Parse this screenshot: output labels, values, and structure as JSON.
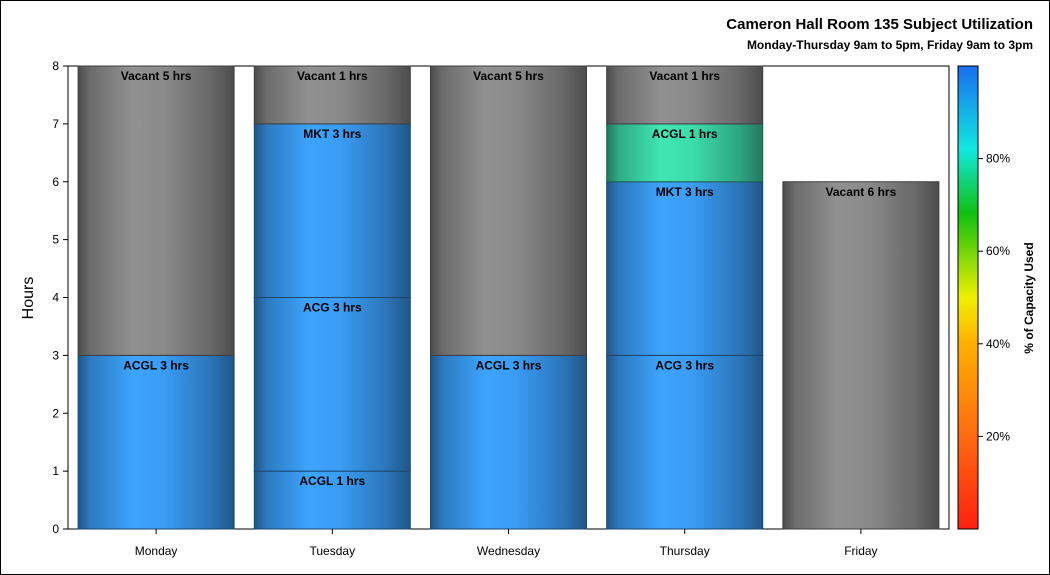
{
  "chart_data": {
    "type": "bar",
    "stacked": true,
    "title": "Cameron Hall Room 135 Subject Utilization",
    "subtitle": "Monday-Thursday 9am to 5pm, Friday 9am to 3pm",
    "ylabel": "Hours",
    "ylim": [
      0,
      8
    ],
    "yticks": [
      0,
      1,
      2,
      3,
      4,
      5,
      6,
      7,
      8
    ],
    "categories": [
      "Monday",
      "Tuesday",
      "Wednesday",
      "Thursday",
      "Friday"
    ],
    "bars": [
      {
        "category": "Monday",
        "segments": [
          {
            "label": "ACGL 3 hrs",
            "hours": 3,
            "color": "#3a9cf5"
          },
          {
            "label": "Vacant 5 hrs",
            "hours": 5,
            "color": "#8a8a8a"
          }
        ]
      },
      {
        "category": "Tuesday",
        "segments": [
          {
            "label": "ACGL 1 hrs",
            "hours": 1,
            "color": "#3a9cf5"
          },
          {
            "label": "ACG 3 hrs",
            "hours": 3,
            "color": "#3a9cf5"
          },
          {
            "label": "MKT 3 hrs",
            "hours": 3,
            "color": "#3a9cf5"
          },
          {
            "label": "Vacant 1 hrs",
            "hours": 1,
            "color": "#8a8a8a"
          }
        ]
      },
      {
        "category": "Wednesday",
        "segments": [
          {
            "label": "ACGL 3 hrs",
            "hours": 3,
            "color": "#3a9cf5"
          },
          {
            "label": "Vacant 5 hrs",
            "hours": 5,
            "color": "#8a8a8a"
          }
        ]
      },
      {
        "category": "Thursday",
        "segments": [
          {
            "label": "ACG 3 hrs",
            "hours": 3,
            "color": "#3a9cf5"
          },
          {
            "label": "MKT 3 hrs",
            "hours": 3,
            "color": "#3a9cf5"
          },
          {
            "label": "ACGL 1 hrs",
            "hours": 1,
            "color": "#3ddcaa"
          },
          {
            "label": "Vacant 1 hrs",
            "hours": 1,
            "color": "#8a8a8a"
          }
        ]
      },
      {
        "category": "Friday",
        "segments": [
          {
            "label": "Vacant 6 hrs",
            "hours": 6,
            "color": "#8a8a8a"
          }
        ]
      }
    ],
    "colorbar": {
      "label": "% of Capacity Used",
      "range": [
        0,
        100
      ],
      "ticks": [
        "20%",
        "40%",
        "60%",
        "80%"
      ],
      "tick_values": [
        20,
        40,
        60,
        80
      ],
      "stops": [
        {
          "value": 0,
          "color": "#ff2010"
        },
        {
          "value": 20,
          "color": "#ff6a10"
        },
        {
          "value": 40,
          "color": "#ffb000"
        },
        {
          "value": 50,
          "color": "#f0f000"
        },
        {
          "value": 68,
          "color": "#10c010"
        },
        {
          "value": 82,
          "color": "#10e8e0"
        },
        {
          "value": 100,
          "color": "#1a6ef0"
        }
      ]
    }
  }
}
